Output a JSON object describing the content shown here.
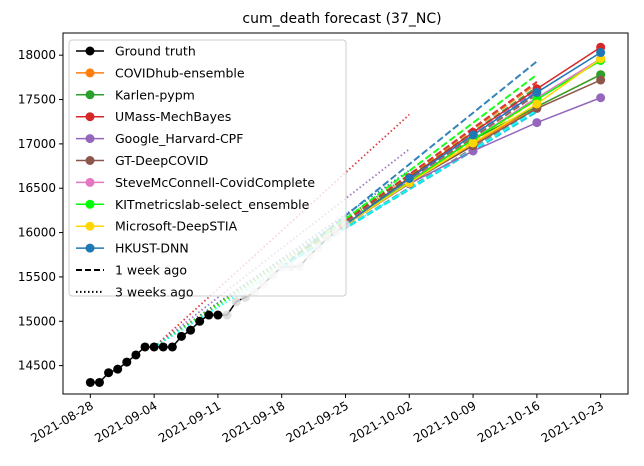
{
  "chart_data": {
    "type": "line",
    "title": "cum_death forecast (37_NC)",
    "xlabel": "",
    "ylabel": "",
    "x_ticks": [
      "2021-08-28",
      "2021-09-04",
      "2021-09-11",
      "2021-09-18",
      "2021-09-25",
      "2021-10-02",
      "2021-10-09",
      "2021-10-16",
      "2021-10-23"
    ],
    "y_ticks": [
      14500,
      15000,
      15500,
      16000,
      16500,
      17000,
      17500,
      18000
    ],
    "xlim": [
      "2021-08-25",
      "2021-10-26"
    ],
    "ylim": [
      14180,
      18250
    ],
    "legend_position": "top-left",
    "ground_truth": {
      "name": "Ground truth",
      "color": "#000000",
      "x": [
        "2021-08-28",
        "2021-08-29",
        "2021-08-30",
        "2021-08-31",
        "2021-09-01",
        "2021-09-02",
        "2021-09-03",
        "2021-09-04",
        "2021-09-05",
        "2021-09-06",
        "2021-09-07",
        "2021-09-08",
        "2021-09-09",
        "2021-09-10",
        "2021-09-11",
        "2021-09-12",
        "2021-09-13",
        "2021-09-14",
        "2021-09-15",
        "2021-09-16",
        "2021-09-17",
        "2021-09-18",
        "2021-09-19",
        "2021-09-20",
        "2021-09-21",
        "2021-09-22",
        "2021-09-23",
        "2021-09-24",
        "2021-09-25"
      ],
      "y": [
        14310,
        14310,
        14420,
        14460,
        14540,
        14620,
        14710,
        14710,
        14710,
        14710,
        14830,
        14900,
        15000,
        15070,
        15070,
        15070,
        15220,
        15270,
        15330,
        15420,
        15520,
        15610,
        15610,
        15620,
        15740,
        15830,
        15940,
        16010,
        16090
      ]
    },
    "series": [
      {
        "name": "COVIDhub-ensemble",
        "color": "#ff7f0e",
        "x": [
          "2021-09-25",
          "2021-10-02",
          "2021-10-09",
          "2021-10-16",
          "2021-10-23"
        ],
        "y": [
          16090,
          16560,
          17000,
          17420,
          17780
        ]
      },
      {
        "name": "Karlen-pypm",
        "color": "#2ca02c",
        "x": [
          "2021-09-25",
          "2021-10-02",
          "2021-10-09",
          "2021-10-16",
          "2021-10-23"
        ],
        "y": [
          16090,
          16580,
          17050,
          17420,
          17780
        ]
      },
      {
        "name": "UMass-MechBayes",
        "color": "#d62728",
        "x": [
          "2021-09-25",
          "2021-10-02",
          "2021-10-09",
          "2021-10-16",
          "2021-10-23"
        ],
        "y": [
          16090,
          16620,
          17130,
          17620,
          18090
        ]
      },
      {
        "name": "Google_Harvard-CPF",
        "color": "#9467bd",
        "x": [
          "2021-09-25",
          "2021-10-02",
          "2021-10-09",
          "2021-10-16",
          "2021-10-23"
        ],
        "y": [
          16090,
          16550,
          16920,
          17240,
          17520
        ]
      },
      {
        "name": "GT-DeepCOVID",
        "color": "#8c564b",
        "x": [
          "2021-09-25",
          "2021-10-02",
          "2021-10-09",
          "2021-10-16",
          "2021-10-23"
        ],
        "y": [
          16090,
          16560,
          16980,
          17400,
          17720
        ]
      },
      {
        "name": "SteveMcConnell-CovidComplete",
        "color": "#e377c2",
        "x": [
          "2021-09-25",
          "2021-10-02",
          "2021-10-09",
          "2021-10-16",
          "2021-10-23"
        ],
        "y": [
          16090,
          16580,
          17050,
          17520,
          17960
        ]
      },
      {
        "name": "KITmetricslab-select_ensemble",
        "color": "#00ff00",
        "x": [
          "2021-09-25",
          "2021-10-02",
          "2021-10-09",
          "2021-10-16",
          "2021-10-23"
        ],
        "y": [
          16090,
          16570,
          17050,
          17500,
          17940
        ]
      },
      {
        "name": "Microsoft-DeepSTIA",
        "color": "#ffd700",
        "x": [
          "2021-09-25",
          "2021-10-02",
          "2021-10-09",
          "2021-10-16",
          "2021-10-23"
        ],
        "y": [
          16090,
          16560,
          17010,
          17450,
          17960
        ]
      },
      {
        "name": "HKUST-DNN",
        "color": "#1f77b4",
        "x": [
          "2021-09-25",
          "2021-10-02",
          "2021-10-09",
          "2021-10-16",
          "2021-10-23"
        ],
        "y": [
          16090,
          16610,
          17100,
          17580,
          18030
        ]
      }
    ],
    "forecasts_1_week_ago": [
      {
        "color": "#ff7f0e",
        "x": [
          "2021-09-18",
          "2021-10-16"
        ],
        "y": [
          15610,
          17680
        ]
      },
      {
        "color": "#2ca02c",
        "x": [
          "2021-09-18",
          "2021-10-16"
        ],
        "y": [
          15610,
          17640
        ]
      },
      {
        "color": "#d62728",
        "x": [
          "2021-09-18",
          "2021-10-16"
        ],
        "y": [
          15610,
          17700
        ]
      },
      {
        "color": "#9467bd",
        "x": [
          "2021-09-18",
          "2021-10-16"
        ],
        "y": [
          15610,
          17600
        ]
      },
      {
        "color": "#8c564b",
        "x": [
          "2021-09-18",
          "2021-10-16"
        ],
        "y": [
          15610,
          17560
        ]
      },
      {
        "color": "#e377c2",
        "x": [
          "2021-09-18",
          "2021-10-16"
        ],
        "y": [
          15610,
          17520
        ]
      },
      {
        "color": "#00ff00",
        "x": [
          "2021-09-18",
          "2021-10-16"
        ],
        "y": [
          15610,
          17780
        ]
      },
      {
        "color": "#ffd700",
        "x": [
          "2021-09-18",
          "2021-10-16"
        ],
        "y": [
          15610,
          17500
        ]
      },
      {
        "color": "#1f77b4",
        "x": [
          "2021-09-18",
          "2021-10-16"
        ],
        "y": [
          15610,
          17930
        ]
      },
      {
        "color": "#17becf",
        "x": [
          "2021-09-18",
          "2021-10-16"
        ],
        "y": [
          15610,
          17360
        ]
      },
      {
        "color": "#7f7f7f",
        "x": [
          "2021-09-18",
          "2021-10-16"
        ],
        "y": [
          15610,
          17400
        ]
      },
      {
        "color": "#00ffff",
        "x": [
          "2021-09-18",
          "2021-10-16"
        ],
        "y": [
          15610,
          17380
        ]
      }
    ],
    "forecasts_3_weeks_ago": [
      {
        "color": "#d62728",
        "x": [
          "2021-09-04",
          "2021-10-02"
        ],
        "y": [
          14710,
          17330
        ]
      },
      {
        "color": "#9467bd",
        "x": [
          "2021-09-04",
          "2021-10-02"
        ],
        "y": [
          14710,
          16940
        ]
      },
      {
        "color": "#1f77b4",
        "x": [
          "2021-09-04",
          "2021-10-02"
        ],
        "y": [
          14710,
          16700
        ]
      },
      {
        "color": "#2ca02c",
        "x": [
          "2021-09-04",
          "2021-10-02"
        ],
        "y": [
          14710,
          16650
        ]
      },
      {
        "color": "#ff7f0e",
        "x": [
          "2021-09-04",
          "2021-10-02"
        ],
        "y": [
          14710,
          16620
        ]
      },
      {
        "color": "#00ff00",
        "x": [
          "2021-09-04",
          "2021-10-02"
        ],
        "y": [
          14710,
          16600
        ]
      },
      {
        "color": "#00ffff",
        "x": [
          "2021-09-04",
          "2021-10-02"
        ],
        "y": [
          14710,
          16500
        ]
      }
    ],
    "legend": [
      {
        "label": "Ground truth",
        "color": "#000000",
        "style": "marker"
      },
      {
        "label": "COVIDhub-ensemble",
        "color": "#ff7f0e",
        "style": "marker"
      },
      {
        "label": "Karlen-pypm",
        "color": "#2ca02c",
        "style": "marker"
      },
      {
        "label": "UMass-MechBayes",
        "color": "#d62728",
        "style": "marker"
      },
      {
        "label": "Google_Harvard-CPF",
        "color": "#9467bd",
        "style": "marker"
      },
      {
        "label": "GT-DeepCOVID",
        "color": "#8c564b",
        "style": "marker"
      },
      {
        "label": "SteveMcConnell-CovidComplete",
        "color": "#e377c2",
        "style": "marker"
      },
      {
        "label": "KITmetricslab-select_ensemble",
        "color": "#00ff00",
        "style": "marker"
      },
      {
        "label": "Microsoft-DeepSTIA",
        "color": "#ffd700",
        "style": "marker"
      },
      {
        "label": "HKUST-DNN",
        "color": "#1f77b4",
        "style": "marker"
      },
      {
        "label": "1 week ago",
        "color": "#000000",
        "style": "dashed"
      },
      {
        "label": "3 weeks ago",
        "color": "#000000",
        "style": "dotted"
      }
    ]
  }
}
